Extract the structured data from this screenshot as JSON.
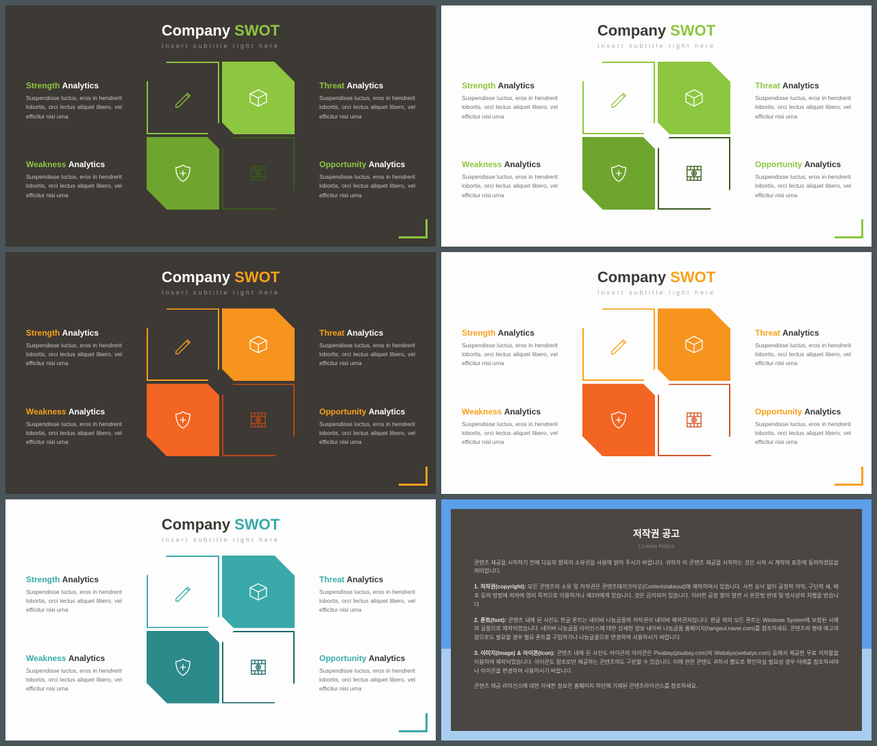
{
  "common": {
    "title_prefix": "Company ",
    "title_accent": "SWOT",
    "subtitle": "Insert subtitle right here",
    "analytics_word": "Analytics",
    "desc": "Suspendisse luctus, eros in hendrerit lobortis, orci lectus aliquet libero, vel efficitur nisi urna",
    "labels": {
      "strength": "Strength ",
      "threat": "Threat ",
      "weakness": "Weakness ",
      "opportunity": "Opportunity "
    }
  },
  "themes": [
    {
      "bg": "dark",
      "accent": "#8dc63f",
      "accent2": "#6ea52e",
      "cells": {
        "tl": {
          "fill": "transparent",
          "stroke": "#8dc63f",
          "icon": "#8dc63f"
        },
        "tr": {
          "fill": "#8dc63f",
          "stroke": "#8dc63f",
          "icon": "#ffffff"
        },
        "bl": {
          "fill": "#6ea52e",
          "stroke": "#6ea52e",
          "icon": "#ffffff"
        },
        "br": {
          "fill": "transparent",
          "stroke": "#3a5a1a",
          "icon": "#3a5a1a"
        }
      }
    },
    {
      "bg": "light",
      "accent": "#8dc63f",
      "accent2": "#6ea52e",
      "cells": {
        "tl": {
          "fill": "transparent",
          "stroke": "#8dc63f",
          "icon": "#8dc63f"
        },
        "tr": {
          "fill": "#8dc63f",
          "stroke": "#8dc63f",
          "icon": "#ffffff"
        },
        "bl": {
          "fill": "#6ea52e",
          "stroke": "#6ea52e",
          "icon": "#ffffff"
        },
        "br": {
          "fill": "transparent",
          "stroke": "#3a5a1a",
          "icon": "#3a5a1a"
        }
      }
    },
    {
      "bg": "dark",
      "accent": "#f9a01b",
      "accent2": "#f26522",
      "cells": {
        "tl": {
          "fill": "transparent",
          "stroke": "#f9a01b",
          "icon": "#f9a01b"
        },
        "tr": {
          "fill": "#f7941e",
          "stroke": "#f7941e",
          "icon": "#ffffff"
        },
        "bl": {
          "fill": "#f26522",
          "stroke": "#f26522",
          "icon": "#ffffff"
        },
        "br": {
          "fill": "transparent",
          "stroke": "#b84a14",
          "icon": "#b84a14"
        }
      }
    },
    {
      "bg": "light",
      "accent": "#f9a01b",
      "accent2": "#f26522",
      "cells": {
        "tl": {
          "fill": "transparent",
          "stroke": "#f9a01b",
          "icon": "#f9a01b"
        },
        "tr": {
          "fill": "#f7941e",
          "stroke": "#f7941e",
          "icon": "#ffffff"
        },
        "bl": {
          "fill": "#f26522",
          "stroke": "#f26522",
          "icon": "#ffffff"
        },
        "br": {
          "fill": "transparent",
          "stroke": "#d35428",
          "icon": "#d35428"
        }
      }
    },
    {
      "bg": "light",
      "accent": "#3aa9a9",
      "accent2": "#2d8a8a",
      "cells": {
        "tl": {
          "fill": "transparent",
          "stroke": "#3aa9a9",
          "icon": "#3aa9a9"
        },
        "tr": {
          "fill": "#3aa9a9",
          "stroke": "#3aa9a9",
          "icon": "#ffffff"
        },
        "bl": {
          "fill": "#2d8a8a",
          "stroke": "#2d8a8a",
          "icon": "#ffffff"
        },
        "br": {
          "fill": "transparent",
          "stroke": "#1f6868",
          "icon": "#1f6868"
        }
      }
    }
  ],
  "copyright": {
    "outer_bg": "#5b9fe8",
    "lower_bg": "#a8cdf0",
    "panel_bg": "#4a4642",
    "title": "저작권 공고",
    "subtitle": "License Notice",
    "p0": "콘텐츠 제공을 시작하기 전에 다음의 항목의 소유권을 사용에 읽어 주시기 바랍니다. 귀하가 이 콘텐츠 제공을 시작하는 것은 시작 시 계약의 표준에 동의하셨음을 의미합니다.",
    "p1_lead": "1. 저작권(copyright): ",
    "p1": "모든 콘텐츠의 소유 및 저작권은 콘텐츠테이크아웃(Contentstakeout)에 제작하여서 있습니다. 사전 승낙 없이 공정적 이익, 구단적 세, 배포 등의 방법에 외하여 영리 목적으로 이용하거나 제3자에게 있습니다. 것은 금지되어 있습니다. 이러한 공정 항이 발견 시 본문법 반대 및 법사상의 처벌을 받습니다.",
    "p2_lead": "2. 폰트(font): ",
    "p2": "콘텐츠 내에 된 사진도 한글 폰트는 네이버 나눔글꼴의 저작권이 네이버 제작권자입니다. 한글 의의 모든 폰트는 Windows System에 보함된 시제의 글꼴으로 제작되었습니다. 네이버 나눔글꼴 라이선스에 대한 상세한 정보 네이버 나눔글꼴 홈페이지(hangeul.naver.com)를 참조하세요. 콘텐츠의 형태 예고과 양으로도 필요할 경우 필요 폰트를 구입하가나 나눔글꼴으로 변경하여 사용하시기 바랍니다.",
    "p3_lead": "3. 이미지(Image) & 아이콘(Icon): ",
    "p3": "콘텐츠 내에 된 사진도 아이콘의 아이콘은 Pixabay(pixabay.com)와 Webalys(webalys.com) 등에서 제공한 무료 저작물을 이용하여 제작되었습니다. 아이콘도 참조로만 제공하는 콘텐츠의도 구분할 수 있습니다. 이에 관한 콘텐도 귀하서 별도로 확인하실 필요성 경우 아래를 참조하셔야 나 아이콘을 변경하여 사용하시기 바랍니다.",
    "p_end": "콘텐츠 제공 라이선스에 대한 자세한 정보은 홈페이지 하단에 기재된 콘텐츠라이선스를 참조하세요."
  }
}
